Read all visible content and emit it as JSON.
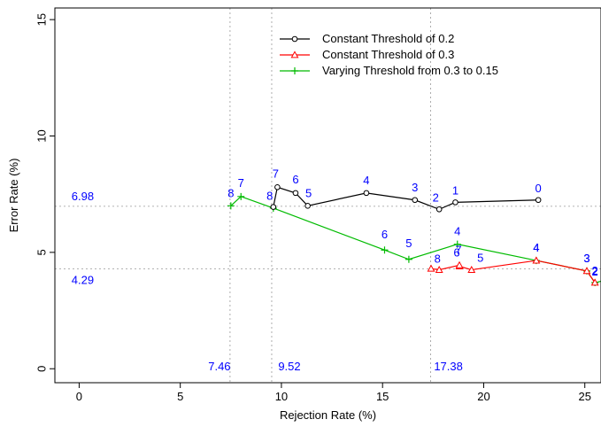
{
  "chart_data": {
    "type": "line",
    "xlabel": "Rejection Rate (%)",
    "ylabel": "Error Rate (%)",
    "xlim": [
      -1.2,
      25.8
    ],
    "ylim": [
      -0.6,
      15.5
    ],
    "x_ticks": [
      0,
      5,
      10,
      15,
      20,
      25
    ],
    "y_ticks": [
      0,
      5,
      10,
      15
    ],
    "legend_position": "top-center",
    "series": [
      {
        "name": "Constant Threshold of 0.2",
        "color": "#000000",
        "marker": "circle",
        "points": [
          {
            "x": 22.7,
            "y": 7.25,
            "label": "0"
          },
          {
            "x": 18.6,
            "y": 7.15,
            "label": "1"
          },
          {
            "x": 17.8,
            "y": 6.85,
            "label": "2"
          },
          {
            "x": 16.6,
            "y": 7.25,
            "label": "3"
          },
          {
            "x": 14.2,
            "y": 7.55,
            "label": "4"
          },
          {
            "x": 11.3,
            "y": 7.0,
            "label": "5"
          },
          {
            "x": 10.7,
            "y": 7.55,
            "label": "6"
          },
          {
            "x": 9.8,
            "y": 7.8,
            "label": "7"
          },
          {
            "x": 9.6,
            "y": 6.95,
            "label": "8"
          }
        ]
      },
      {
        "name": "Constant Threshold of 0.3",
        "color": "#ff0000",
        "marker": "triangle",
        "points": [
          {
            "x": 25.5,
            "y": 3.7,
            "label": "2"
          },
          {
            "x": 25.1,
            "y": 4.2,
            "label": "3"
          },
          {
            "x": 22.6,
            "y": 4.65,
            "label": "4"
          },
          {
            "x": 19.4,
            "y": 4.25,
            "label": "5"
          },
          {
            "x": 18.8,
            "y": 4.4,
            "label": "6"
          },
          {
            "x": 18.8,
            "y": 4.45,
            "label": "7"
          },
          {
            "x": 17.8,
            "y": 4.25,
            "label": "8"
          },
          {
            "x": 17.4,
            "y": 4.3,
            "label": ""
          }
        ]
      },
      {
        "name": "Varying Threshold from 0.3 to 0.15",
        "color": "#00bb00",
        "marker": "plus",
        "points": [
          {
            "x": 26.5,
            "y": 3.9,
            "label": ""
          },
          {
            "x": 25.5,
            "y": 3.7,
            "label": "2"
          },
          {
            "x": 25.1,
            "y": 4.2,
            "label": "3"
          },
          {
            "x": 22.6,
            "y": 4.65,
            "label": "4"
          },
          {
            "x": 18.7,
            "y": 5.35,
            "label": "4"
          },
          {
            "x": 16.3,
            "y": 4.7,
            "label": "5"
          },
          {
            "x": 15.1,
            "y": 5.1,
            "label": "6"
          },
          {
            "x": 9.6,
            "y": 6.9,
            "label": ""
          },
          {
            "x": 8.0,
            "y": 7.4,
            "label": "7"
          },
          {
            "x": 7.5,
            "y": 7.0,
            "label": "8"
          }
        ]
      }
    ],
    "reference_lines": {
      "vertical": [
        {
          "x": 7.46,
          "label": "7.46"
        },
        {
          "x": 9.52,
          "label": "9.52"
        },
        {
          "x": 17.38,
          "label": "17.38"
        }
      ],
      "horizontal": [
        {
          "y": 6.98,
          "label": "6.98"
        },
        {
          "y": 4.29,
          "label": "4.29"
        }
      ],
      "color": "#999999",
      "label_color": "#0000ff"
    },
    "label_color": "#0000ff"
  }
}
